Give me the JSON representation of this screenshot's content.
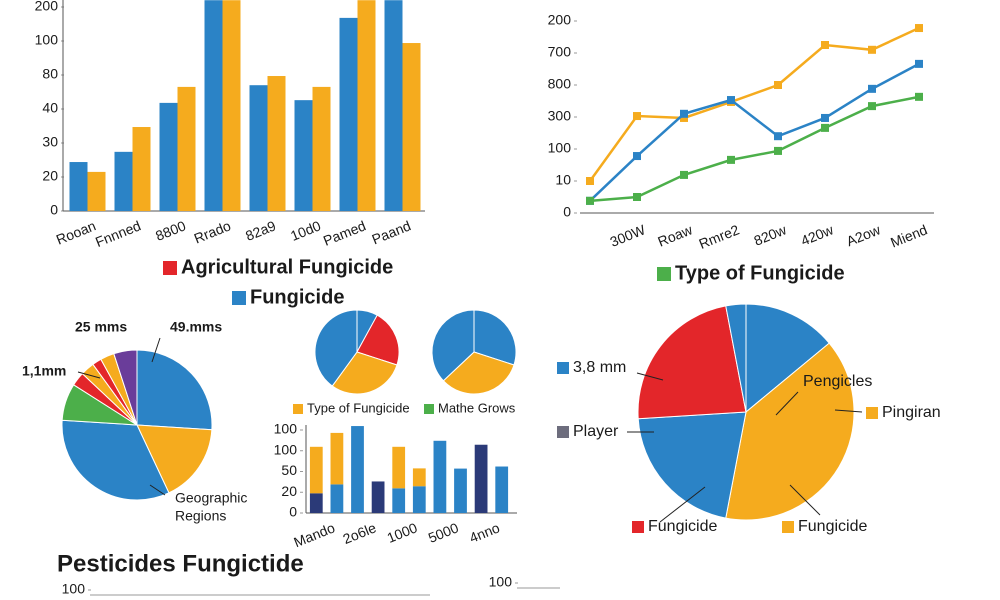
{
  "chart_data": [
    {
      "type": "bar",
      "categories": [
        "Rooan",
        "Fnnned",
        "8800",
        "Rrado",
        "82a9",
        "10d0",
        "Pamed",
        "Paand"
      ],
      "series": [
        {
          "name": "Fungicide",
          "color": "#2b83c6",
          "values": [
            1.44,
            1.74,
            3.18,
            6.2,
            3.7,
            3.26,
            5.68,
            6.2
          ]
        },
        {
          "name": "Agricultural Fungicide",
          "color": "#f5ab1e",
          "legend_color": "#e3262a",
          "values": [
            1.15,
            2.47,
            3.65,
            6.2,
            3.97,
            3.65,
            6.2,
            4.94
          ]
        }
      ],
      "ylim": [
        0,
        6
      ],
      "yticks": [
        0,
        {
          "value": 1,
          "label": "20"
        },
        {
          "value": 2,
          "label": "30"
        },
        {
          "value": 3,
          "label": "40"
        },
        {
          "value": 4,
          "label": "80"
        },
        {
          "value": 5,
          "label": "100"
        },
        {
          "value": 6,
          "label": "200"
        }
      ]
    },
    {
      "type": "line",
      "categories": [
        null,
        "300W",
        "Roaw",
        "Rmre2",
        "820w",
        "420w",
        "A2ow",
        "Miend"
      ],
      "series": [
        {
          "color": "#f5ab1e",
          "values": [
            1.0,
            3.03,
            2.97,
            3.47,
            4.0,
            5.25,
            5.1,
            5.78
          ]
        },
        {
          "color": "#2b83c6",
          "values": [
            0.38,
            1.78,
            3.1,
            3.53,
            2.4,
            2.97,
            3.88,
            4.66
          ]
        },
        {
          "name": "Type of Fungicide",
          "color": "#4caf4a",
          "values": [
            0.38,
            0.5,
            1.19,
            1.66,
            1.94,
            2.66,
            3.34,
            3.63
          ]
        }
      ],
      "ylim": [
        0,
        6
      ],
      "yticks": [
        0,
        {
          "value": 1,
          "label": "10"
        },
        {
          "value": 2,
          "label": "100"
        },
        {
          "value": 3,
          "label": "300"
        },
        {
          "value": 4,
          "label": "800"
        },
        {
          "value": 5,
          "label": "700"
        },
        {
          "value": 6,
          "label": "200"
        }
      ]
    },
    {
      "type": "pie",
      "values": [
        26,
        17,
        33,
        8,
        3,
        3,
        2,
        3,
        5
      ],
      "colors": [
        "#2b83c6",
        "#f5ab1e",
        "#2b83c6",
        "#4caf4a",
        "#e3262a",
        "#f5ab1e",
        "#e3262a",
        "#f5ab1e",
        "#6a3d9a"
      ],
      "annotations": [
        "25 mms",
        "49.mms",
        "1,1mm",
        "Geographic",
        "Regions"
      ]
    },
    {
      "type": "pie",
      "values": [
        8,
        22,
        30,
        40
      ],
      "colors": [
        "#2b83c6",
        "#e3262a",
        "#f5ab1e",
        "#2b83c6"
      ],
      "legend": [
        {
          "label": "Type of Fungicide",
          "color": "#f5ab1e"
        },
        {
          "label": "Mathe Grows",
          "color": "#4caf4a"
        }
      ]
    },
    {
      "type": "pie",
      "values": [
        30,
        33,
        37
      ],
      "colors": [
        "#2b83c6",
        "#f5ab1e",
        "#2b83c6"
      ]
    },
    {
      "type": "stacked-bar",
      "categories": [
        "Mando",
        null,
        "2o6le",
        null,
        "1000",
        null,
        "5000",
        null,
        "4nno",
        null
      ],
      "series": [
        {
          "color": "#2b3a78",
          "values": [
            0.95,
            null,
            null,
            1.52,
            null,
            null,
            null,
            null,
            3.29,
            null
          ]
        },
        {
          "color": "#2b83c6",
          "values": [
            null,
            1.38,
            4.19,
            null,
            1.19,
            1.29,
            3.48,
            2.14,
            null,
            2.24
          ]
        },
        {
          "color": "#f5ab1e",
          "values": [
            2.24,
            2.48,
            null,
            null,
            2.0,
            0.86,
            null,
            null,
            null,
            null
          ]
        }
      ],
      "ylim": [
        0,
        4
      ],
      "yticks": [
        0,
        {
          "value": 1,
          "label": "20"
        },
        {
          "value": 2,
          "label": "50"
        },
        {
          "value": 3,
          "label": "100"
        },
        {
          "value": 4,
          "label": "100"
        }
      ]
    },
    {
      "type": "pie",
      "values": [
        14,
        39,
        21,
        23,
        3
      ],
      "colors": [
        "#2b83c6",
        "#f5ab1e",
        "#2b83c6",
        "#e3262a",
        "#2b83c6"
      ],
      "legend": [
        {
          "label": "3,8 mm",
          "color": "#2b83c6"
        },
        {
          "label": "Pengicles"
        },
        {
          "label": "Pingiran",
          "color": "#f5ab1e"
        },
        {
          "label": "Player",
          "color": "#6d6d7d"
        },
        {
          "label": "Fungicide",
          "color": "#e3262a"
        },
        {
          "label": "Fungicide",
          "color": "#f5ab1e"
        }
      ]
    },
    {
      "type": "axis",
      "title": "Pesticides Fungictide",
      "ylim": [
        0,
        100
      ],
      "yticks": [
        100
      ]
    },
    {
      "type": "axis",
      "ylim": [
        0,
        100
      ],
      "yticks": [
        100
      ]
    }
  ]
}
